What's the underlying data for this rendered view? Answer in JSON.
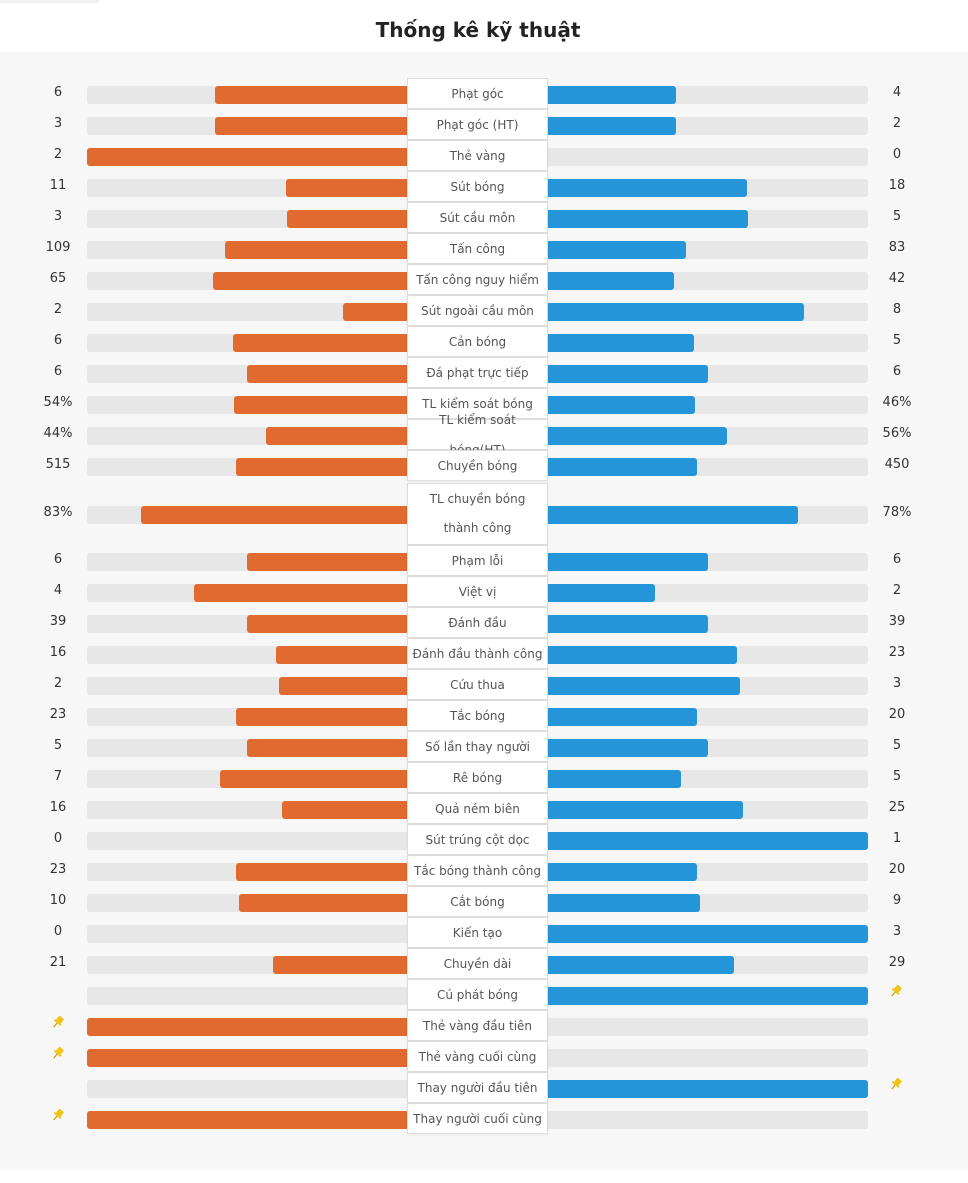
{
  "title": "Thống kê kỹ thuật",
  "colors": {
    "home": "#e06a30",
    "away": "#2595d9",
    "track": "#e7e7e7",
    "pin": "#f2c318"
  },
  "stats": [
    {
      "label": "Phạt góc",
      "home": "6",
      "away": "4",
      "home_share": 0.6,
      "away_share": 0.4
    },
    {
      "label": "Phạt góc (HT)",
      "home": "3",
      "away": "2",
      "home_share": 0.6,
      "away_share": 0.4
    },
    {
      "label": "Thẻ vàng",
      "home": "2",
      "away": "0",
      "home_share": 1.0,
      "away_share": 0.0
    },
    {
      "label": "Sút bóng",
      "home": "11",
      "away": "18",
      "home_share": 0.379,
      "away_share": 0.621
    },
    {
      "label": "Sút cầu môn",
      "home": "3",
      "away": "5",
      "home_share": 0.375,
      "away_share": 0.625
    },
    {
      "label": "Tấn công",
      "home": "109",
      "away": "83",
      "home_share": 0.568,
      "away_share": 0.432
    },
    {
      "label": "Tấn công nguy hiểm",
      "home": "65",
      "away": "42",
      "home_share": 0.607,
      "away_share": 0.393
    },
    {
      "label": "Sút ngoài cầu môn",
      "home": "2",
      "away": "8",
      "home_share": 0.2,
      "away_share": 0.8
    },
    {
      "label": "Cản bóng",
      "home": "6",
      "away": "5",
      "home_share": 0.545,
      "away_share": 0.455
    },
    {
      "label": "Đá phạt trực tiếp",
      "home": "6",
      "away": "6",
      "home_share": 0.5,
      "away_share": 0.5
    },
    {
      "label": "TL kiểm soát bóng",
      "home": "54%",
      "away": "46%",
      "home_share": 0.54,
      "away_share": 0.46
    },
    {
      "label": "TL kiểm soát bóng(HT)",
      "home": "44%",
      "away": "56%",
      "home_share": 0.44,
      "away_share": 0.56
    },
    {
      "label": "Chuyền bóng",
      "home": "515",
      "away": "450",
      "home_share": 0.534,
      "away_share": 0.466
    },
    {
      "label": "TL chuyền bóng thành công",
      "home": "83%",
      "away": "78%",
      "home_share": 0.83,
      "away_share": 0.78
    },
    {
      "label": "Phạm lỗi",
      "home": "6",
      "away": "6",
      "home_share": 0.5,
      "away_share": 0.5
    },
    {
      "label": "Việt vị",
      "home": "4",
      "away": "2",
      "home_share": 0.667,
      "away_share": 0.333
    },
    {
      "label": "Đánh đầu",
      "home": "39",
      "away": "39",
      "home_share": 0.5,
      "away_share": 0.5
    },
    {
      "label": "Đánh đầu thành công",
      "home": "16",
      "away": "23",
      "home_share": 0.41,
      "away_share": 0.59
    },
    {
      "label": "Cứu thua",
      "home": "2",
      "away": "3",
      "home_share": 0.4,
      "away_share": 0.6
    },
    {
      "label": "Tắc bóng",
      "home": "23",
      "away": "20",
      "home_share": 0.535,
      "away_share": 0.465
    },
    {
      "label": "Số lần thay người",
      "home": "5",
      "away": "5",
      "home_share": 0.5,
      "away_share": 0.5
    },
    {
      "label": "Rê bóng",
      "home": "7",
      "away": "5",
      "home_share": 0.583,
      "away_share": 0.417
    },
    {
      "label": "Quả ném biên",
      "home": "16",
      "away": "25",
      "home_share": 0.39,
      "away_share": 0.61
    },
    {
      "label": "Sút trúng cột dọc",
      "home": "0",
      "away": "1",
      "home_share": 0.0,
      "away_share": 1.0
    },
    {
      "label": "Tắc bóng thành công",
      "home": "23",
      "away": "20",
      "home_share": 0.535,
      "away_share": 0.465
    },
    {
      "label": "Cắt bóng",
      "home": "10",
      "away": "9",
      "home_share": 0.526,
      "away_share": 0.474
    },
    {
      "label": "Kiến tạo",
      "home": "0",
      "away": "3",
      "home_share": 0.0,
      "away_share": 1.0
    },
    {
      "label": "Chuyền dài",
      "home": "21",
      "away": "29",
      "home_share": 0.42,
      "away_share": 0.58
    },
    {
      "label": "Cú phát bóng",
      "home": "",
      "away": "",
      "home_share": 0.0,
      "away_share": 1.0,
      "pin": "away"
    },
    {
      "label": "Thẻ vàng đầu tiên",
      "home": "",
      "away": "",
      "home_share": 1.0,
      "away_share": 0.0,
      "pin": "home"
    },
    {
      "label": "Thẻ vàng cuối cùng",
      "home": "",
      "away": "",
      "home_share": 1.0,
      "away_share": 0.0,
      "pin": "home"
    },
    {
      "label": "Thay người đầu tiên",
      "home": "",
      "away": "",
      "home_share": 0.0,
      "away_share": 1.0,
      "pin": "away"
    },
    {
      "label": "Thay người cuối cùng",
      "home": "",
      "away": "",
      "home_share": 1.0,
      "away_share": 0.0,
      "pin": "home"
    }
  ]
}
